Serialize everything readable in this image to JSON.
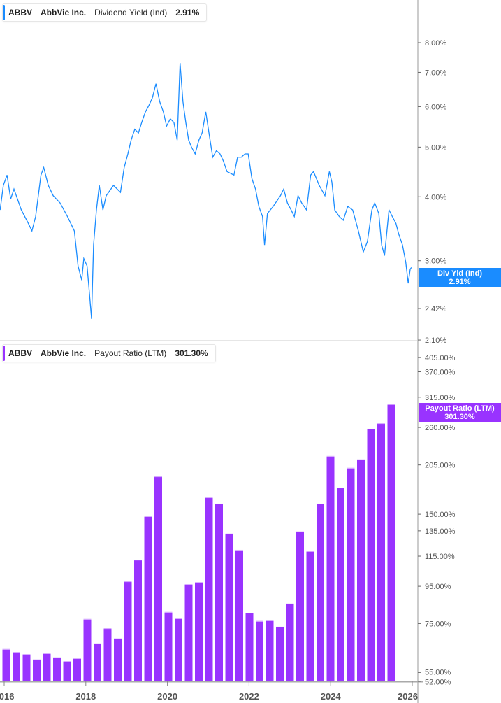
{
  "chart_data": [
    {
      "type": "line",
      "ticker": "ABBV",
      "company": "AbbVie Inc.",
      "metric": "Dividend Yield (Ind)",
      "current_value": "2.91%",
      "tag_label": "Div Yld (Ind)",
      "scale": "log",
      "color": "#1a8cff",
      "y_ticks": [
        "8.00%",
        "7.00%",
        "6.00%",
        "5.00%",
        "4.00%",
        "3.00%",
        "2.42%",
        "2.10%"
      ],
      "ylim": [
        2.1,
        8.6
      ],
      "x": [
        2015.9,
        2015.98,
        2016.07,
        2016.16,
        2016.24,
        2016.42,
        2016.59,
        2016.68,
        2016.77,
        2016.9,
        2016.97,
        2017.08,
        2017.2,
        2017.37,
        2017.55,
        2017.63,
        2017.72,
        2017.81,
        2017.9,
        2017.95,
        2018.03,
        2018.09,
        2018.14,
        2018.19,
        2018.26,
        2018.33,
        2018.42,
        2018.5,
        2018.68,
        2018.85,
        2018.94,
        2019.03,
        2019.11,
        2019.2,
        2019.29,
        2019.37,
        2019.46,
        2019.55,
        2019.63,
        2019.72,
        2019.81,
        2019.9,
        2019.98,
        2020.07,
        2020.16,
        2020.24,
        2020.31,
        2020.38,
        2020.45,
        2020.52,
        2020.59,
        2020.68,
        2020.77,
        2020.85,
        2020.94,
        2021.03,
        2021.11,
        2021.2,
        2021.29,
        2021.37,
        2021.46,
        2021.63,
        2021.72,
        2021.81,
        2021.9,
        2021.98,
        2022.07,
        2022.16,
        2022.24,
        2022.33,
        2022.38,
        2022.45,
        2022.59,
        2022.77,
        2022.85,
        2022.94,
        2023.03,
        2023.11,
        2023.2,
        2023.29,
        2023.41,
        2023.51,
        2023.58,
        2023.72,
        2023.86,
        2023.97,
        2024.03,
        2024.1,
        2024.21,
        2024.31,
        2024.42,
        2024.54,
        2024.68,
        2024.8,
        2024.9,
        2025.01,
        2025.08,
        2025.18,
        2025.25,
        2025.32,
        2025.43,
        2025.51,
        2025.6,
        2025.67,
        2025.76,
        2025.84,
        2025.9,
        2025.95,
        2025.98
      ],
      "y": [
        3.77,
        4.21,
        4.41,
        3.96,
        4.14,
        3.77,
        3.55,
        3.43,
        3.66,
        4.41,
        4.56,
        4.21,
        4.02,
        3.89,
        3.66,
        3.55,
        3.43,
        2.93,
        2.75,
        3.03,
        2.93,
        2.58,
        2.31,
        3.22,
        3.77,
        4.21,
        3.77,
        4.02,
        4.21,
        4.08,
        4.56,
        4.85,
        5.16,
        5.42,
        5.33,
        5.59,
        5.86,
        6.04,
        6.24,
        6.65,
        6.14,
        5.86,
        5.5,
        5.68,
        5.59,
        5.16,
        7.3,
        6.14,
        5.59,
        5.16,
        5.0,
        4.85,
        5.16,
        5.33,
        5.86,
        5.25,
        4.78,
        4.92,
        4.85,
        4.7,
        4.48,
        4.41,
        4.78,
        4.78,
        4.85,
        4.85,
        4.34,
        4.14,
        3.83,
        3.66,
        3.22,
        3.71,
        3.83,
        4.02,
        4.14,
        3.89,
        3.77,
        3.66,
        4.02,
        3.89,
        3.77,
        4.41,
        4.48,
        4.21,
        4.02,
        4.48,
        4.27,
        3.77,
        3.66,
        3.6,
        3.83,
        3.77,
        3.43,
        3.12,
        3.27,
        3.77,
        3.89,
        3.71,
        3.22,
        3.07,
        3.77,
        3.66,
        3.55,
        3.38,
        3.22,
        2.98,
        2.71,
        2.89,
        2.91
      ]
    },
    {
      "type": "bar",
      "ticker": "ABBV",
      "company": "AbbVie Inc.",
      "metric": "Payout Ratio (LTM)",
      "current_value": "301.30%",
      "tag_label": "Payout Ratio (LTM)",
      "scale": "log",
      "color": "#9933ff",
      "y_ticks": [
        "405.00%",
        "370.00%",
        "315.00%",
        "260.00%",
        "205.00%",
        "150.00%",
        "135.00%",
        "115.00%",
        "95.00%",
        "75.00%",
        "55.00%",
        "52.00%"
      ],
      "ylim": [
        52,
        405
      ],
      "categories": [
        "2016Q1",
        "2016Q2",
        "2016Q3",
        "2016Q4",
        "2017Q1",
        "2017Q2",
        "2017Q3",
        "2017Q4",
        "2018Q1",
        "2018Q2",
        "2018Q3",
        "2018Q4",
        "2019Q1",
        "2019Q2",
        "2019Q3",
        "2019Q4",
        "2020Q1",
        "2020Q2",
        "2020Q3",
        "2020Q4",
        "2021Q1",
        "2021Q2",
        "2021Q3",
        "2021Q4",
        "2022Q1",
        "2022Q2",
        "2022Q3",
        "2022Q4",
        "2023Q1",
        "2023Q2",
        "2023Q3",
        "2023Q4",
        "2024Q1",
        "2024Q2",
        "2024Q3",
        "2024Q4",
        "2025Q1",
        "2025Q2",
        "2025Q3"
      ],
      "values": [
        63.8,
        62.6,
        61.8,
        59.7,
        62.1,
        60.5,
        59.1,
        60.2,
        77.2,
        66.1,
        72.8,
        68.2,
        98.0,
        112.4,
        148.1,
        190.6,
        80.7,
        77.5,
        96.3,
        97.6,
        166.9,
        160.4,
        132.6,
        119.7,
        80.3,
        76.2,
        76.5,
        73.5,
        85.1,
        134.4,
        118.7,
        160.4,
        216.9,
        177.6,
        201.2,
        212.2,
        257.8,
        267.0,
        301.3
      ]
    }
  ],
  "x_ticks": [
    "2016",
    "2018",
    "2020",
    "2022",
    "2024",
    "2026"
  ]
}
